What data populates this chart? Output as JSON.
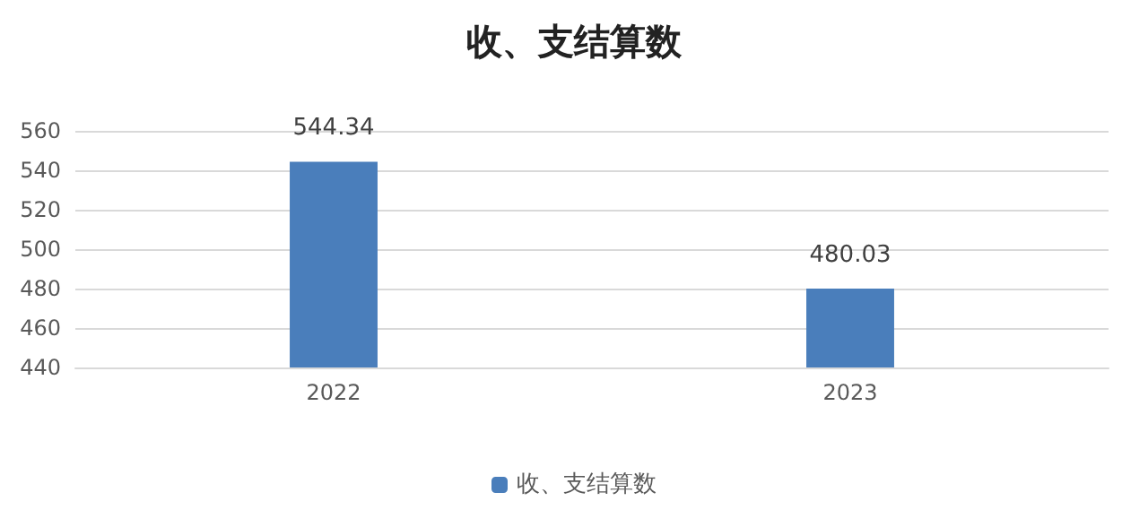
{
  "chart_data": {
    "type": "bar",
    "title": "收、支结算数",
    "categories": [
      "2022",
      "2023"
    ],
    "series": [
      {
        "name": "收、支结算数",
        "color": "#4a7ebb",
        "values": [
          544.34,
          480.03
        ]
      }
    ],
    "ylim": [
      440,
      560
    ],
    "yticks": [
      440,
      460,
      480,
      500,
      520,
      540,
      560
    ],
    "grid": "y",
    "legend": "bottom",
    "data_labels": true
  }
}
